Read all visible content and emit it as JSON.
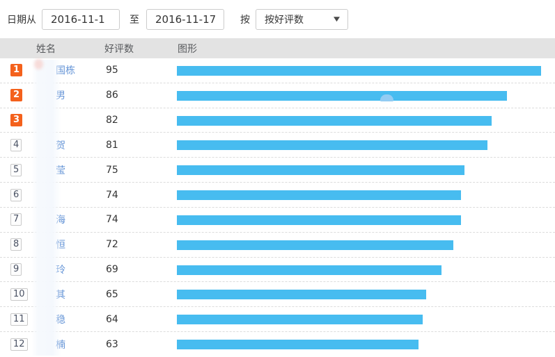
{
  "filter_bar": {
    "date_from_label": "日期从",
    "date_from_value": "2016-11-1",
    "to_label": "至",
    "date_to_value": "2016-11-17",
    "sort_label": "按",
    "sort_selected": "按好评数"
  },
  "table": {
    "columns": {
      "name": "姓名",
      "value": "好评数",
      "chart": "图形"
    },
    "rows": [
      {
        "rank": 1,
        "name": "国栋",
        "value": 95
      },
      {
        "rank": 2,
        "name": "男",
        "value": 86
      },
      {
        "rank": 3,
        "name": "",
        "value": 82
      },
      {
        "rank": 4,
        "name": "贺",
        "value": 81
      },
      {
        "rank": 5,
        "name": "莹",
        "value": 75
      },
      {
        "rank": 6,
        "name": "",
        "value": 74
      },
      {
        "rank": 7,
        "name": "海",
        "value": 74
      },
      {
        "rank": 8,
        "name": "恒",
        "value": 72
      },
      {
        "rank": 9,
        "name": "玲",
        "value": 69
      },
      {
        "rank": 10,
        "name": "其",
        "value": 65
      },
      {
        "rank": 11,
        "name": "稳",
        "value": 64
      },
      {
        "rank": 12,
        "name": "楠",
        "value": 63
      }
    ]
  },
  "chart_data": {
    "type": "bar",
    "orientation": "horizontal",
    "title": "",
    "xlabel": "好评数",
    "ylabel": "姓名",
    "categories": [
      "国栋",
      "男",
      "",
      "贺",
      "莹",
      "",
      "海",
      "恒",
      "玲",
      "其",
      "稳",
      "楠"
    ],
    "values": [
      95,
      86,
      82,
      81,
      75,
      74,
      74,
      72,
      69,
      65,
      64,
      63
    ],
    "xlim": [
      0,
      98
    ],
    "legend": false,
    "grid": false
  },
  "colors": {
    "bar": "#47bcf0",
    "rank_top_bg": "#f4611c",
    "name_text": "#6393d6",
    "header_bg": "#e3e3e3"
  }
}
